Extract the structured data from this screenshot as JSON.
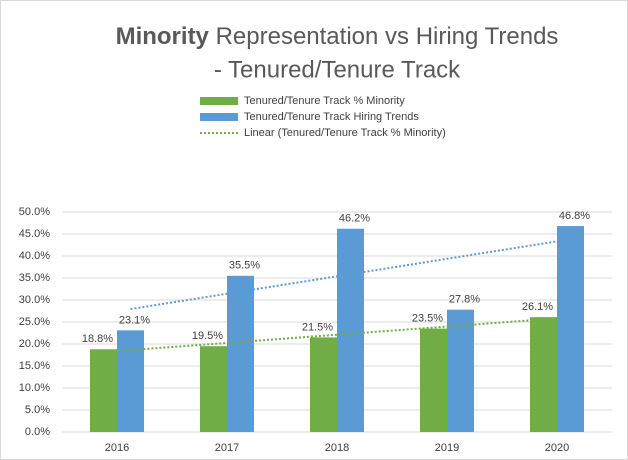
{
  "chart_data": {
    "type": "bar",
    "title_bold": "Minority",
    "title": "Representation vs Hiring Trends",
    "subtitle": "- Tenured/Tenure Track",
    "categories": [
      "2016",
      "2017",
      "2018",
      "2019",
      "2020"
    ],
    "series": [
      {
        "name": "Tenured/Tenure Track % Minority",
        "color": "#70ad47",
        "values": [
          18.8,
          19.5,
          21.5,
          23.5,
          26.1
        ],
        "value_labels": [
          "18.8%",
          "19.5%",
          "21.5%",
          "23.5%",
          "26.1%"
        ]
      },
      {
        "name": "Tenured/Tenure Track Hiring Trends",
        "color": "#5b9bd5",
        "values": [
          23.1,
          35.5,
          46.2,
          27.8,
          46.8
        ],
        "value_labels": [
          "23.1%",
          "35.5%",
          "46.2%",
          "27.8%",
          "46.8%"
        ]
      }
    ],
    "trendlines": [
      {
        "name": "Linear (Tenured/Tenure Track % Minority)",
        "series": 0
      },
      {
        "series": 1
      }
    ],
    "ylim": [
      0,
      50
    ],
    "yticks": [
      {
        "value": 0,
        "label": "0.0%"
      },
      {
        "value": 5,
        "label": "5.0%"
      },
      {
        "value": 10,
        "label": "10.0%"
      },
      {
        "value": 15,
        "label": "15.0%"
      },
      {
        "value": 20,
        "label": "20.0%"
      },
      {
        "value": 25,
        "label": "25.0%"
      },
      {
        "value": 30,
        "label": "30.0%"
      },
      {
        "value": 35,
        "label": "35.0%"
      },
      {
        "value": 40,
        "label": "40.0%"
      },
      {
        "value": 45,
        "label": "45.0%"
      },
      {
        "value": 50,
        "label": "50.0%"
      }
    ],
    "grid": true
  }
}
